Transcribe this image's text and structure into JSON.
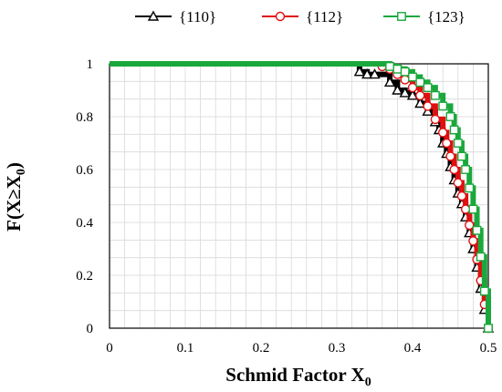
{
  "chart_data": {
    "type": "line",
    "xlabel_main": "Schmid Factor X",
    "xlabel_sub": "0",
    "ylabel_pre": "F(X≥X",
    "ylabel_sub": "0",
    "ylabel_post": ")",
    "xlim": [
      0,
      0.5
    ],
    "ylim": [
      0,
      1
    ],
    "x_ticks": [
      0,
      0.1,
      0.2,
      0.3,
      0.4,
      0.5
    ],
    "y_ticks": [
      0,
      0.2,
      0.4,
      0.6,
      0.8,
      1
    ],
    "grid": true,
    "legend_position": "top",
    "series": [
      {
        "name": "{110}",
        "color": "#000000",
        "marker": "triangle",
        "marker_fill": "none",
        "x": [
          0,
          0.33,
          0.34,
          0.35,
          0.37,
          0.38,
          0.39,
          0.4,
          0.41,
          0.42,
          0.43,
          0.435,
          0.44,
          0.445,
          0.45,
          0.455,
          0.46,
          0.465,
          0.47,
          0.475,
          0.48,
          0.485,
          0.49,
          0.495,
          0.5
        ],
        "y": [
          1,
          0.97,
          0.96,
          0.96,
          0.93,
          0.9,
          0.89,
          0.88,
          0.85,
          0.82,
          0.78,
          0.75,
          0.7,
          0.66,
          0.61,
          0.56,
          0.51,
          0.47,
          0.42,
          0.36,
          0.3,
          0.23,
          0.15,
          0.07,
          0
        ]
      },
      {
        "name": "{112}",
        "color": "#e01010",
        "marker": "circle",
        "marker_fill": "none",
        "x": [
          0,
          0.36,
          0.37,
          0.38,
          0.39,
          0.4,
          0.41,
          0.42,
          0.43,
          0.44,
          0.445,
          0.45,
          0.455,
          0.46,
          0.465,
          0.47,
          0.475,
          0.48,
          0.485,
          0.49,
          0.495,
          0.5
        ],
        "y": [
          1,
          0.99,
          0.98,
          0.96,
          0.94,
          0.91,
          0.88,
          0.84,
          0.79,
          0.74,
          0.7,
          0.65,
          0.6,
          0.55,
          0.5,
          0.45,
          0.39,
          0.33,
          0.26,
          0.18,
          0.09,
          0
        ]
      },
      {
        "name": "{123}",
        "color": "#1aa83c",
        "marker": "square",
        "marker_fill": "none",
        "x": [
          0,
          0.37,
          0.38,
          0.39,
          0.4,
          0.41,
          0.42,
          0.43,
          0.44,
          0.45,
          0.455,
          0.46,
          0.465,
          0.47,
          0.475,
          0.48,
          0.485,
          0.49,
          0.495,
          0.5
        ],
        "y": [
          1,
          0.99,
          0.98,
          0.97,
          0.95,
          0.93,
          0.91,
          0.88,
          0.84,
          0.8,
          0.75,
          0.7,
          0.65,
          0.6,
          0.53,
          0.45,
          0.37,
          0.27,
          0.14,
          0
        ]
      }
    ]
  }
}
